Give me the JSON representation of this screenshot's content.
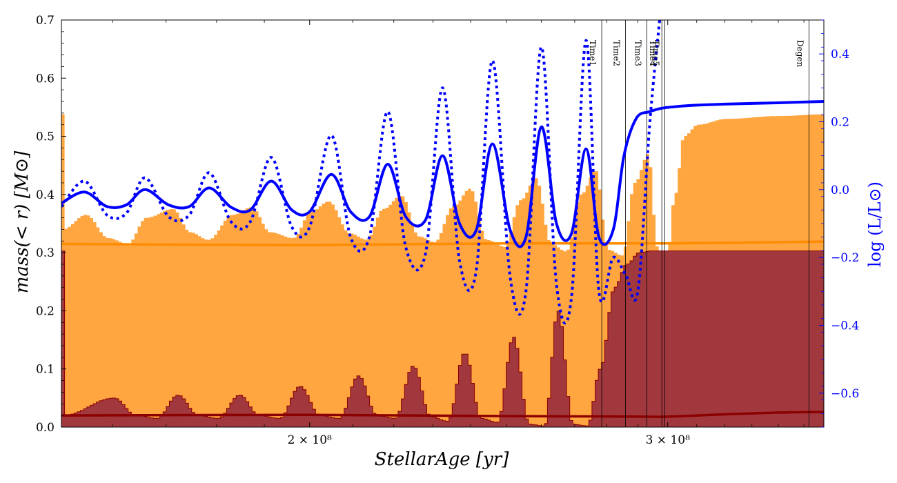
{
  "chart_data": {
    "type": "area",
    "xlabel": "StellarAge [yr]",
    "ylabel": "mass(< r) [M⊙]",
    "y2label": "log (L/L⊙)",
    "xscale": "log",
    "xlim": [
      151000000.0,
      358000000.0
    ],
    "ylim": [
      0,
      0.7
    ],
    "y2lim": [
      -0.7,
      0.5
    ],
    "xticks": [
      {
        "value": 200000000.0,
        "label": "2 × 10⁸"
      },
      {
        "value": 300000000.0,
        "label": "3 × 10⁸"
      }
    ],
    "yticks": [
      0.0,
      0.1,
      0.2,
      0.3,
      0.4,
      0.5,
      0.6,
      0.7
    ],
    "y2ticks": [
      -0.6,
      -0.4,
      -0.2,
      0.0,
      0.2,
      0.4
    ],
    "colors": {
      "outer_fill": "#FFA640",
      "outer_line": "#FF8C00",
      "core_fill": "#A0383D",
      "core_line": "#8B0000",
      "luminosity": "#0000FF",
      "vlines": "#000000"
    },
    "series": [
      {
        "kind": "filled-area-upper",
        "axis": "left",
        "x": [
          151000000.0,
          155000000.0,
          159000000.0,
          162500000.0,
          166000000.0,
          171000000.0,
          174500000.0,
          178000000.0,
          183000000.0,
          187000000.0,
          191000000.0,
          196000000.0,
          200000000.0,
          204000000.0,
          209000000.0,
          213000000.0,
          217000000.0,
          221500000.0,
          226000000.0,
          230000000.0,
          235000000.0,
          239500000.0,
          244000000.0,
          249000000.0,
          253500000.0,
          258000000.0,
          262500000.0,
          267000000.0,
          271500000.0,
          276000000.0,
          280000000.0,
          284500000.0,
          288500000.0,
          293000000.0,
          296000000.0,
          299000000.0,
          302000000.0,
          305000000.0,
          310000000.0,
          320000000.0,
          340000000.0,
          358000000.0
        ],
        "y": [
          0.34,
          0.365,
          0.325,
          0.315,
          0.36,
          0.375,
          0.335,
          0.322,
          0.365,
          0.378,
          0.335,
          0.325,
          0.37,
          0.388,
          0.333,
          0.322,
          0.375,
          0.398,
          0.328,
          0.318,
          0.38,
          0.41,
          0.322,
          0.31,
          0.39,
          0.428,
          0.315,
          0.302,
          0.4,
          0.442,
          0.305,
          0.295,
          0.42,
          0.47,
          0.31,
          0.28,
          0.4,
          0.5,
          0.52,
          0.53,
          0.535,
          0.538
        ]
      },
      {
        "kind": "line",
        "axis": "left",
        "x": [
          151000000.0,
          200000000.0,
          250000000.0,
          300000000.0,
          358000000.0
        ],
        "y": [
          0.315,
          0.313,
          0.316,
          0.316,
          0.319
        ]
      },
      {
        "kind": "filled-area-upper",
        "axis": "left",
        "x": [
          151000000.0,
          160000000.0,
          164000000.0,
          168000000.0,
          172000000.0,
          176000000.0,
          180000000.0,
          184500000.0,
          188500000.0,
          193000000.0,
          197500000.0,
          202000000.0,
          206500000.0,
          211000000.0,
          215500000.0,
          220000000.0,
          224500000.0,
          229000000.0,
          233500000.0,
          238000000.0,
          242500000.0,
          247000000.0,
          251500000.0,
          256000000.0,
          260500000.0,
          264500000.0,
          269000000.0,
          273500000.0,
          277500000.0,
          282000000.0,
          286000000.0,
          290000000.0,
          294000000.0,
          297500000.0,
          300000000.0,
          303000000.0,
          306000000.0,
          310000000.0,
          320000000.0,
          330000000.0,
          340000000.0,
          358000000.0
        ],
        "y": [
          0.02,
          0.05,
          0.02,
          0.015,
          0.055,
          0.02,
          0.015,
          0.055,
          0.02,
          0.015,
          0.07,
          0.02,
          0.015,
          0.088,
          0.02,
          0.015,
          0.105,
          0.018,
          0.01,
          0.128,
          0.015,
          0.008,
          0.155,
          0.005,
          0.002,
          0.2,
          0.005,
          0.002,
          0.1,
          0.24,
          0.28,
          0.3,
          0.303,
          0.303,
          0.303,
          0.303,
          0.303,
          0.303,
          0.303,
          0.303,
          0.303,
          0.303
        ]
      },
      {
        "kind": "line",
        "axis": "left",
        "x": [
          151000000.0,
          200000000.0,
          250000000.0,
          290000000.0,
          300000000.0,
          320000000.0,
          340000000.0,
          358000000.0
        ],
        "y": [
          0.02,
          0.021,
          0.019,
          0.018,
          0.018,
          0.022,
          0.025,
          0.026
        ]
      },
      {
        "kind": "line",
        "axis": "right",
        "style": "solid",
        "x": [
          151000000.0,
          155000000.0,
          159000000.0,
          162500000.0,
          166000000.0,
          170500000.0,
          174500000.0,
          178500000.0,
          183000000.0,
          187000000.0,
          191500000.0,
          196000000.0,
          200000000.0,
          205000000.0,
          209500000.0,
          214000000.0,
          218500000.0,
          223000000.0,
          228000000.0,
          232500000.0,
          237000000.0,
          241500000.0,
          246000000.0,
          251000000.0,
          255500000.0,
          260000000.0,
          264500000.0,
          269000000.0,
          273500000.0,
          277500000.0,
          282000000.0,
          285500000.0,
          289500000.0,
          294000000.0,
          298000000.0,
          302000000.0,
          306000000.0,
          310000000.0,
          320000000.0,
          340000000.0,
          358000000.0
        ],
        "y": [
          -0.04,
          -0.007,
          -0.05,
          -0.045,
          0.0,
          -0.045,
          -0.05,
          0.005,
          -0.052,
          -0.06,
          0.025,
          -0.06,
          -0.065,
          0.045,
          -0.065,
          -0.08,
          0.075,
          -0.08,
          -0.09,
          0.1,
          -0.1,
          -0.12,
          0.135,
          -0.12,
          -0.14,
          0.185,
          -0.1,
          -0.13,
          0.12,
          -0.14,
          -0.12,
          0.1,
          0.21,
          0.23,
          0.24,
          0.244,
          0.247,
          0.249,
          0.252,
          0.256,
          0.26
        ]
      },
      {
        "kind": "line",
        "axis": "right",
        "style": "dotted",
        "x": [
          151000000.0,
          155000000.0,
          159000000.0,
          162500000.0,
          166000000.0,
          170500000.0,
          174500000.0,
          178500000.0,
          183000000.0,
          187000000.0,
          191500000.0,
          196000000.0,
          200000000.0,
          205000000.0,
          209500000.0,
          214000000.0,
          218500000.0,
          223000000.0,
          228000000.0,
          232500000.0,
          237000000.0,
          241500000.0,
          246000000.0,
          251000000.0,
          255500000.0,
          260000000.0,
          264500000.0,
          269000000.0,
          273500000.0,
          277500000.0,
          282000000.0,
          286000000.0,
          290000000.0,
          294000000.0,
          297500000.0
        ],
        "y": [
          -0.05,
          0.025,
          -0.075,
          -0.07,
          0.035,
          -0.08,
          -0.075,
          0.05,
          -0.095,
          -0.095,
          0.095,
          -0.11,
          -0.11,
          0.16,
          -0.14,
          -0.14,
          0.23,
          -0.17,
          -0.19,
          0.3,
          -0.21,
          -0.24,
          0.38,
          -0.26,
          -0.3,
          0.42,
          -0.28,
          -0.32,
          0.44,
          -0.3,
          -0.2,
          -0.25,
          -0.3,
          0.2,
          0.52
        ]
      }
    ],
    "vlines": [
      {
        "x": 278400000.0,
        "label": "Time1"
      },
      {
        "x": 286000000.0,
        "label": "Time2"
      },
      {
        "x": 293000000.0,
        "label": "Time3"
      },
      {
        "x": 298000000.0,
        "label": "Time4"
      },
      {
        "x": 299000000.0,
        "label": "Time5"
      },
      {
        "x": 352000000.0,
        "label": "Degen"
      }
    ],
    "grid": false,
    "legend": "none"
  }
}
